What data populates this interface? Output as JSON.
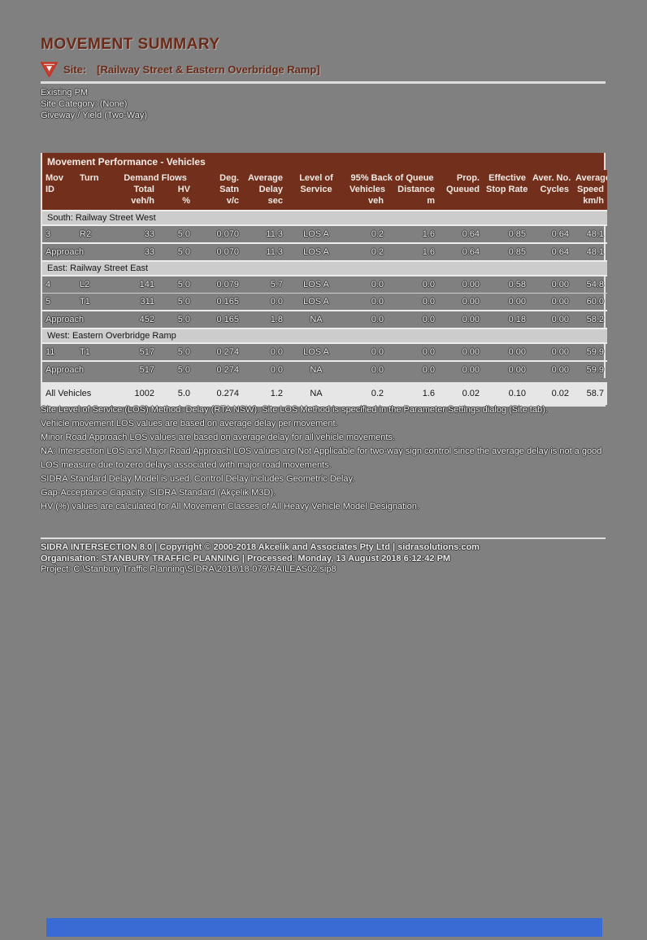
{
  "page": {
    "title": "MOVEMENT SUMMARY",
    "site_label": "Site:",
    "site_name": "[Railway Street & Eastern Overbridge Ramp]",
    "subtitle_lines": [
      "Existing PM",
      "Site Category: (None)",
      "Giveway / Yield (Two-Way)"
    ]
  },
  "colors": {
    "accent_maroon": "#6b2a18",
    "table_header_bg": "#722f1b",
    "page_gray": "#808080",
    "section_row_bg": "#cccccc",
    "total_row_bg": "#e6e6e6",
    "blue_bar": "#3a6ad4"
  },
  "icons": {
    "giveway_sign": "give-way-triangle"
  },
  "table": {
    "title": "Movement Performance - Vehicles",
    "header": {
      "row1": [
        "Mov",
        "Turn",
        "Demand Flows",
        "Deg.",
        "Average",
        "Level of",
        "95% Back of Queue",
        "Prop.",
        "Effective",
        "Aver. No.",
        "Average"
      ],
      "row2": [
        "ID",
        "",
        "Total",
        "HV",
        "Satn",
        "Delay",
        "Service",
        "Vehicles",
        "Distance",
        "Queued",
        "Stop Rate",
        "Cycles",
        "Speed"
      ],
      "row3": [
        "",
        "",
        "veh/h",
        "%",
        "v/c",
        "sec",
        "",
        "veh",
        "m",
        "",
        "",
        "",
        "km/h"
      ]
    },
    "rows": [
      {
        "type": "section",
        "label": "South: Railway Street West"
      },
      {
        "type": "data",
        "cells": [
          "3",
          "R2",
          "33",
          "5.0",
          "0.070",
          "11.3",
          "LOS A",
          "0.2",
          "1.6",
          "0.64",
          "0.85",
          "0.64",
          "48.1"
        ]
      },
      {
        "type": "approach",
        "label": "Approach",
        "cells": [
          "33",
          "5.0",
          "0.070",
          "11.3",
          "LOS A",
          "0.2",
          "1.6",
          "0.64",
          "0.85",
          "0.64",
          "48.1"
        ]
      },
      {
        "type": "section",
        "label": "East: Railway Street East"
      },
      {
        "type": "data",
        "cells": [
          "4",
          "L2",
          "141",
          "5.0",
          "0.079",
          "5.7",
          "LOS A",
          "0.0",
          "0.0",
          "0.00",
          "0.58",
          "0.00",
          "54.8"
        ]
      },
      {
        "type": "data",
        "cells": [
          "5",
          "T1",
          "311",
          "5.0",
          "0.165",
          "0.0",
          "LOS A",
          "0.0",
          "0.0",
          "0.00",
          "0.00",
          "0.00",
          "60.0"
        ]
      },
      {
        "type": "approach",
        "label": "Approach",
        "cells": [
          "452",
          "5.0",
          "0.165",
          "1.8",
          "NA",
          "0.0",
          "0.0",
          "0.00",
          "0.18",
          "0.00",
          "58.2"
        ]
      },
      {
        "type": "section",
        "label": "West: Eastern Overbridge Ramp"
      },
      {
        "type": "data",
        "cells": [
          "11",
          "T1",
          "517",
          "5.0",
          "0.274",
          "0.0",
          "LOS A",
          "0.0",
          "0.0",
          "0.00",
          "0.00",
          "0.00",
          "59.9"
        ]
      },
      {
        "type": "approach",
        "label": "Approach",
        "cells": [
          "517",
          "5.0",
          "0.274",
          "0.0",
          "NA",
          "0.0",
          "0.0",
          "0.00",
          "0.00",
          "0.00",
          "59.9"
        ]
      },
      {
        "type": "total",
        "label": "All Vehicles",
        "cells": [
          "1002",
          "5.0",
          "0.274",
          "1.2",
          "NA",
          "0.2",
          "1.6",
          "0.02",
          "0.10",
          "0.02",
          "58.7"
        ]
      }
    ]
  },
  "notes": [
    "Site Level of Service (LOS) Method: Delay (RTA NSW). Site LOS Method is specified in the Parameter Settings dialog (Site tab).",
    "Vehicle movement LOS values are based on average delay per movement.",
    "Minor Road Approach LOS values are based on average delay for all vehicle movements.",
    "NA: Intersection LOS and Major Road Approach LOS values are Not Applicable for two-way sign control since the average delay is not a good LOS measure due to zero delays associated with major road movements.",
    "SIDRA Standard Delay Model is used. Control Delay includes Geometric Delay.",
    "Gap-Acceptance Capacity: SIDRA Standard (Akçelik M3D).",
    "HV (%) values are calculated for All Movement Classes of All Heavy Vehicle Model Designation."
  ],
  "footer": {
    "line1": "SIDRA INTERSECTION 8.0  |  Copyright © 2000-2018 Akcelik and Associates Pty Ltd  |  sidrasolutions.com",
    "line2": "Organisation: STANBURY TRAFFIC PLANNING  |  Processed: Monday, 13 August 2018 6:12:42 PM",
    "line3": "Project: C:\\Stanbury Traffic Planning\\SIDRA\\2018\\18-079\\RAILEAS02.sip8"
  }
}
